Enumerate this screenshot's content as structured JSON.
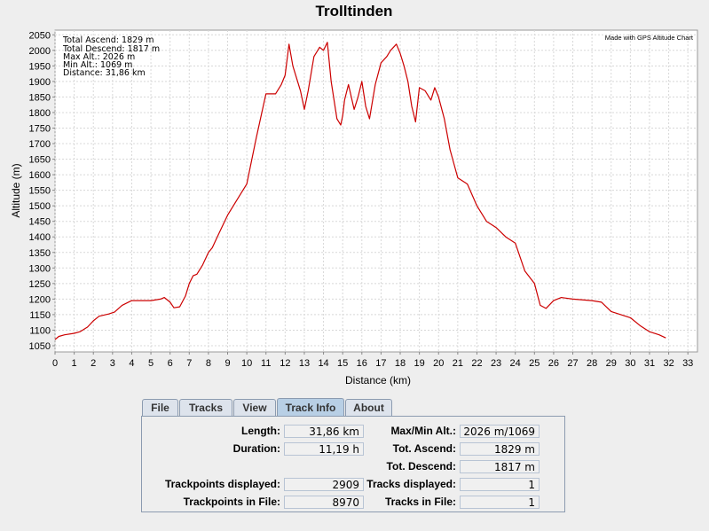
{
  "chart_data": {
    "type": "line",
    "title": "Trolltinden",
    "xlabel": "Distance (km)",
    "ylabel": "Altitude (m)",
    "xlim": [
      0,
      33.5
    ],
    "ylim": [
      1030,
      2065
    ],
    "x_ticks": [
      0,
      1,
      2,
      3,
      4,
      5,
      6,
      7,
      8,
      9,
      10,
      11,
      12,
      13,
      14,
      15,
      16,
      17,
      18,
      19,
      20,
      21,
      22,
      23,
      24,
      25,
      26,
      27,
      28,
      29,
      30,
      31,
      32,
      33
    ],
    "y_ticks": [
      1050,
      1100,
      1150,
      1200,
      1250,
      1300,
      1350,
      1400,
      1450,
      1500,
      1550,
      1600,
      1650,
      1700,
      1750,
      1800,
      1850,
      1900,
      1950,
      2000,
      2050
    ],
    "grid": true,
    "line_color": "#cc0000",
    "series": [
      {
        "name": "",
        "x": [
          0,
          0.2,
          0.5,
          1,
          1.3,
          1.7,
          2,
          2.3,
          2.8,
          3.1,
          3.5,
          4,
          4.5,
          5,
          5.5,
          5.7,
          6,
          6.2,
          6.5,
          6.8,
          7,
          7.2,
          7.4,
          7.7,
          8,
          8.2,
          8.5,
          9,
          9.5,
          10,
          10.5,
          11,
          11.5,
          11.8,
          12,
          12.2,
          12.4,
          12.8,
          13,
          13.2,
          13.5,
          13.8,
          14,
          14.2,
          14.4,
          14.7,
          14.9,
          15,
          15.1,
          15.3,
          15.6,
          15.8,
          16,
          16.2,
          16.4,
          16.7,
          17,
          17.3,
          17.5,
          17.8,
          18,
          18.2,
          18.4,
          18.6,
          18.8,
          19,
          19.3,
          19.6,
          19.8,
          20,
          20.3,
          20.6,
          21,
          21.5,
          22,
          22.5,
          23,
          23.5,
          24,
          24.5,
          25,
          25.3,
          25.6,
          26,
          26.4,
          27,
          28,
          28.5,
          29,
          29.5,
          30,
          30.5,
          31,
          31.5,
          31.85
        ],
        "y": [
          1070,
          1080,
          1085,
          1090,
          1095,
          1110,
          1130,
          1145,
          1152,
          1158,
          1180,
          1195,
          1195,
          1195,
          1200,
          1205,
          1190,
          1172,
          1175,
          1210,
          1250,
          1275,
          1280,
          1310,
          1350,
          1365,
          1405,
          1470,
          1520,
          1570,
          1720,
          1860,
          1860,
          1890,
          1920,
          2020,
          1950,
          1870,
          1810,
          1870,
          1980,
          2010,
          2000,
          2026,
          1900,
          1780,
          1760,
          1790,
          1840,
          1890,
          1810,
          1850,
          1900,
          1820,
          1780,
          1890,
          1960,
          1980,
          2000,
          2020,
          1990,
          1950,
          1900,
          1820,
          1770,
          1880,
          1870,
          1840,
          1880,
          1850,
          1780,
          1680,
          1590,
          1570,
          1500,
          1450,
          1430,
          1400,
          1380,
          1290,
          1250,
          1180,
          1170,
          1195,
          1205,
          1200,
          1195,
          1190,
          1160,
          1150,
          1140,
          1115,
          1095,
          1085,
          1075
        ]
      }
    ]
  },
  "stats_box": [
    "Total Ascend: 1829 m",
    "Total Descend: 1817 m",
    "Max Alt.: 2026 m",
    "Min Alt.: 1069 m",
    "Distance: 31,86 km"
  ],
  "watermark": "Made with GPS Altitude Chart",
  "tabs": [
    "File",
    "Tracks",
    "View",
    "Track Info",
    "About"
  ],
  "active_tab": "Track Info",
  "track_info": {
    "length_label": "Length:",
    "length_value": "31,86 km",
    "duration_label": "Duration:",
    "duration_value": "11,19 h",
    "trackpoints_displayed_label": "Trackpoints displayed:",
    "trackpoints_displayed_value": "2909",
    "trackpoints_in_file_label": "Trackpoints in File:",
    "trackpoints_in_file_value": "8970",
    "maxmin_label": "Max/Min Alt.:",
    "maxmin_value": "2026 m/1069 m",
    "tot_ascend_label": "Tot. Ascend:",
    "tot_ascend_value": "1829 m",
    "tot_descend_label": "Tot. Descend:",
    "tot_descend_value": "1817 m",
    "tracks_displayed_label": "Tracks displayed:",
    "tracks_displayed_value": "1",
    "tracks_in_file_label": "Tracks in File:",
    "tracks_in_file_value": "1"
  }
}
